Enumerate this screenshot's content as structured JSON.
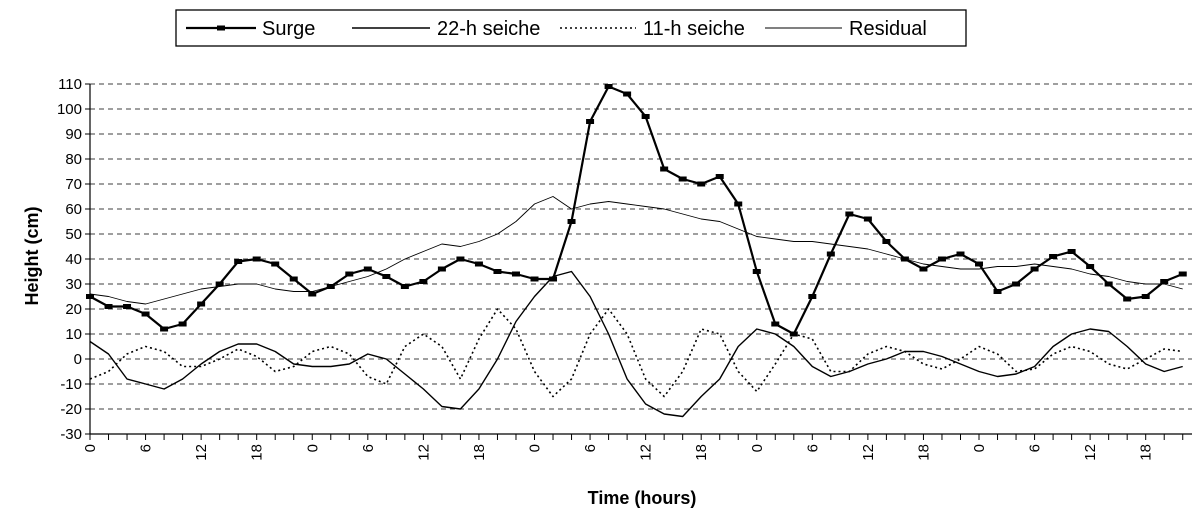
{
  "chart_data": {
    "type": "line",
    "title": "",
    "xlabel": "Time (hours)",
    "ylabel": "Height (cm)",
    "ylim": [
      -30,
      110
    ],
    "yticks": [
      -30,
      -20,
      -10,
      0,
      10,
      20,
      30,
      40,
      50,
      60,
      70,
      80,
      90,
      100,
      110
    ],
    "grid": "horizontal dashed",
    "legend": "top-center",
    "x_tick_labels": [
      "0",
      "6",
      "12",
      "18",
      "0",
      "6",
      "12",
      "18",
      "0",
      "6",
      "12",
      "18",
      "0",
      "6",
      "12",
      "18",
      "0",
      "6",
      "12",
      "18"
    ],
    "x": [
      0,
      2,
      4,
      6,
      8,
      10,
      12,
      14,
      16,
      18,
      20,
      22,
      24,
      26,
      28,
      30,
      32,
      34,
      36,
      38,
      40,
      42,
      44,
      46,
      48,
      50,
      52,
      54,
      56,
      58,
      60,
      62,
      64,
      66,
      68,
      70,
      72,
      74,
      76,
      78,
      80,
      82,
      84,
      86,
      88,
      90,
      92,
      94,
      96,
      98,
      100,
      102,
      104,
      106,
      108,
      110,
      112,
      114,
      116,
      118
    ],
    "series": [
      {
        "name": "Surge",
        "style": "thick solid with square markers",
        "color": "#000000",
        "values": [
          25,
          21,
          21,
          18,
          12,
          14,
          22,
          30,
          39,
          40,
          38,
          32,
          26,
          29,
          34,
          36,
          33,
          29,
          31,
          36,
          40,
          38,
          35,
          34,
          32,
          32,
          55,
          95,
          109,
          106,
          97,
          76,
          72,
          70,
          73,
          62,
          35,
          14,
          10,
          25,
          42,
          58,
          56,
          47,
          40,
          36,
          40,
          42,
          38,
          27,
          30,
          36,
          41,
          43,
          37,
          30,
          24,
          25,
          31,
          34
        ]
      },
      {
        "name": "22-h seiche",
        "style": "solid",
        "color": "#000000",
        "values": [
          7,
          2,
          -8,
          -10,
          -12,
          -8,
          -2,
          3,
          6,
          6,
          3,
          -2,
          -3,
          -3,
          -2,
          2,
          0,
          -6,
          -12,
          -19,
          -20,
          -12,
          0,
          15,
          25,
          33,
          35,
          25,
          10,
          -8,
          -18,
          -22,
          -23,
          -15,
          -8,
          5,
          12,
          10,
          5,
          -3,
          -7,
          -5,
          -2,
          0,
          3,
          3,
          1,
          -2,
          -5,
          -7,
          -6,
          -3,
          5,
          10,
          12,
          11,
          5,
          -2,
          -5,
          -3
        ]
      },
      {
        "name": "11-h seiche",
        "style": "dotted",
        "color": "#000000",
        "values": [
          -8,
          -5,
          2,
          5,
          3,
          -3,
          -3,
          0,
          4,
          1,
          -5,
          -3,
          3,
          5,
          2,
          -7,
          -10,
          5,
          10,
          5,
          -8,
          8,
          20,
          12,
          -5,
          -15,
          -8,
          10,
          20,
          10,
          -8,
          -15,
          -5,
          12,
          10,
          -5,
          -13,
          -2,
          10,
          8,
          -5,
          -5,
          2,
          5,
          3,
          -2,
          -4,
          0,
          5,
          2,
          -5,
          -4,
          2,
          5,
          3,
          -2,
          -4,
          0,
          4,
          3
        ]
      },
      {
        "name": "Residual",
        "style": "thin solid",
        "color": "#000000",
        "values": [
          26,
          25,
          23,
          22,
          24,
          26,
          28,
          29,
          30,
          30,
          28,
          27,
          27,
          29,
          31,
          33,
          36,
          40,
          43,
          46,
          45,
          47,
          50,
          55,
          62,
          65,
          60,
          62,
          63,
          62,
          61,
          60,
          58,
          56,
          55,
          52,
          49,
          48,
          47,
          47,
          46,
          45,
          44,
          42,
          40,
          38,
          37,
          36,
          36,
          37,
          37,
          38,
          37,
          36,
          34,
          33,
          31,
          30,
          30,
          28
        ]
      }
    ]
  }
}
